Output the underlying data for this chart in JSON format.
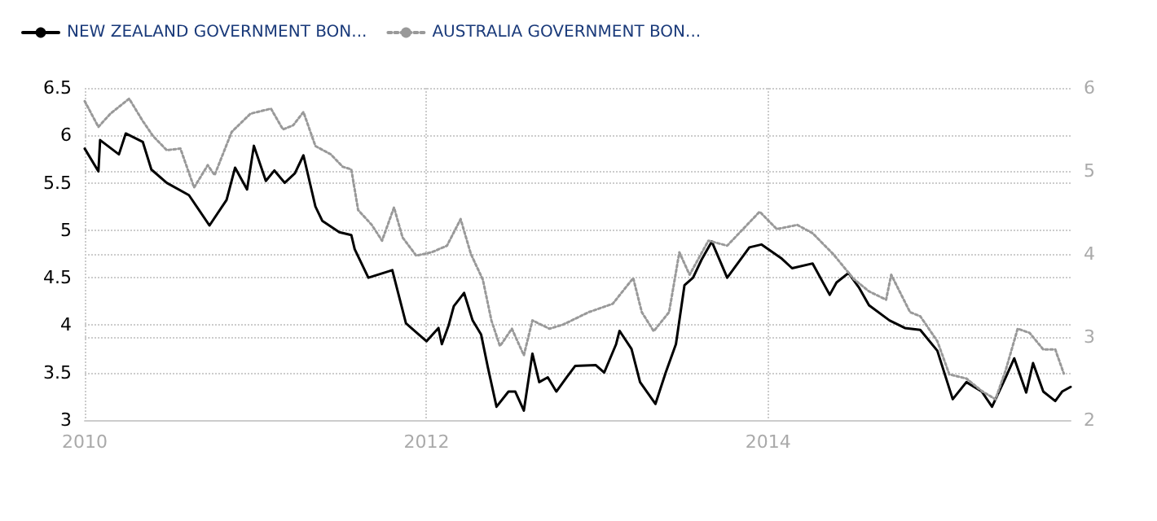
{
  "chart_data": {
    "type": "line",
    "xlim": [
      2010,
      2015.77
    ],
    "xticks": [
      2010,
      2012,
      2014
    ],
    "ylim": [
      3,
      6.5
    ],
    "yticks": [
      3,
      3.5,
      4,
      4.5,
      5,
      5.5,
      6,
      6.5
    ],
    "y2lim": [
      2,
      6
    ],
    "y2ticks": [
      2,
      3,
      4,
      5,
      6
    ],
    "grid": true,
    "legend": "top left",
    "series": [
      {
        "name": "NEW ZEALAND GOVERNMENT BON...",
        "color": "#000000",
        "line_style": "solid",
        "x": [
          2010,
          2010.08,
          2010.09,
          2010.2,
          2010.24,
          2010.34,
          2010.39,
          2010.48,
          2010.61,
          2010.73,
          2010.83,
          2010.88,
          2010.95,
          2010.99,
          2011.06,
          2011.11,
          2011.17,
          2011.23,
          2011.28,
          2011.35,
          2011.39,
          2011.49,
          2011.56,
          2011.58,
          2011.66,
          2011.8,
          2011.88,
          2012.0,
          2012.07,
          2012.09,
          2012.13,
          2012.16,
          2012.22,
          2012.27,
          2012.32,
          2012.36,
          2012.41,
          2012.48,
          2012.52,
          2012.57,
          2012.62,
          2012.66,
          2012.71,
          2012.76,
          2012.82,
          2012.87,
          2012.99,
          2013.04,
          2013.11,
          2013.13,
          2013.2,
          2013.25,
          2013.34,
          2013.4,
          2013.46,
          2013.51,
          2013.56,
          2013.61,
          2013.67,
          2013.76,
          2013.89,
          2013.96,
          2014.08,
          2014.14,
          2014.26,
          2014.36,
          2014.4,
          2014.47,
          2014.53,
          2014.59,
          2014.71,
          2014.8,
          2014.89,
          2014.99,
          2015.08,
          2015.16,
          2015.25,
          2015.31,
          2015.39,
          2015.44,
          2015.51,
          2015.55,
          2015.61,
          2015.68,
          2015.72,
          2015.77
        ],
        "values": [
          5.86,
          5.62,
          5.95,
          5.8,
          6.02,
          5.93,
          5.64,
          5.5,
          5.37,
          5.05,
          5.32,
          5.66,
          5.43,
          5.89,
          5.52,
          5.63,
          5.5,
          5.6,
          5.79,
          5.25,
          5.1,
          4.98,
          4.95,
          4.8,
          4.5,
          4.58,
          4.02,
          3.83,
          3.97,
          3.8,
          4.0,
          4.2,
          4.34,
          4.05,
          3.9,
          3.55,
          3.14,
          3.3,
          3.3,
          3.1,
          3.7,
          3.4,
          3.45,
          3.3,
          3.45,
          3.57,
          3.58,
          3.5,
          3.8,
          3.94,
          3.75,
          3.4,
          3.17,
          3.5,
          3.8,
          4.42,
          4.5,
          4.69,
          4.88,
          4.5,
          4.82,
          4.85,
          4.7,
          4.6,
          4.65,
          4.32,
          4.45,
          4.55,
          4.4,
          4.21,
          4.05,
          3.97,
          3.95,
          3.73,
          3.22,
          3.4,
          3.3,
          3.14,
          3.45,
          3.65,
          3.29,
          3.6,
          3.3,
          3.2,
          3.3,
          3.35
        ]
      },
      {
        "name": "AUSTRALIA GOVERNMENT BON...",
        "color": "#999999",
        "line_style": "dotted",
        "axis": "y2",
        "x": [
          2010,
          2010.08,
          2010.15,
          2010.26,
          2010.34,
          2010.4,
          2010.48,
          2010.56,
          2010.64,
          2010.72,
          2010.76,
          2010.86,
          2010.97,
          2011.09,
          2011.16,
          2011.22,
          2011.28,
          2011.35,
          2011.44,
          2011.51,
          2011.56,
          2011.6,
          2011.68,
          2011.74,
          2011.81,
          2011.86,
          2011.94,
          2012.03,
          2012.12,
          2012.2,
          2012.26,
          2012.33,
          2012.38,
          2012.43,
          2012.5,
          2012.57,
          2012.62,
          2012.72,
          2012.8,
          2012.95,
          2013.09,
          2013.21,
          2013.26,
          2013.33,
          2013.42,
          2013.48,
          2013.54,
          2013.65,
          2013.76,
          2013.95,
          2014.05,
          2014.17,
          2014.26,
          2014.38,
          2014.5,
          2014.59,
          2014.69,
          2014.72,
          2014.83,
          2014.89,
          2014.99,
          2015.06,
          2015.16,
          2015.25,
          2015.33,
          2015.39,
          2015.46,
          2015.53,
          2015.61,
          2015.68,
          2015.73
        ],
        "values": [
          5.84,
          5.53,
          5.69,
          5.87,
          5.6,
          5.42,
          5.25,
          5.27,
          4.8,
          5.07,
          4.95,
          5.47,
          5.69,
          5.75,
          5.5,
          5.55,
          5.71,
          5.3,
          5.2,
          5.05,
          5.02,
          4.53,
          4.35,
          4.16,
          4.56,
          4.2,
          3.98,
          4.02,
          4.1,
          4.42,
          4.0,
          3.69,
          3.2,
          2.89,
          3.1,
          2.78,
          3.2,
          3.1,
          3.15,
          3.3,
          3.4,
          3.71,
          3.3,
          3.07,
          3.3,
          4.02,
          3.75,
          4.16,
          4.1,
          4.51,
          4.3,
          4.35,
          4.25,
          4.0,
          3.7,
          3.55,
          3.45,
          3.75,
          3.3,
          3.25,
          2.95,
          2.55,
          2.5,
          2.35,
          2.25,
          2.6,
          3.1,
          3.05,
          2.85,
          2.85,
          2.56
        ]
      }
    ]
  }
}
